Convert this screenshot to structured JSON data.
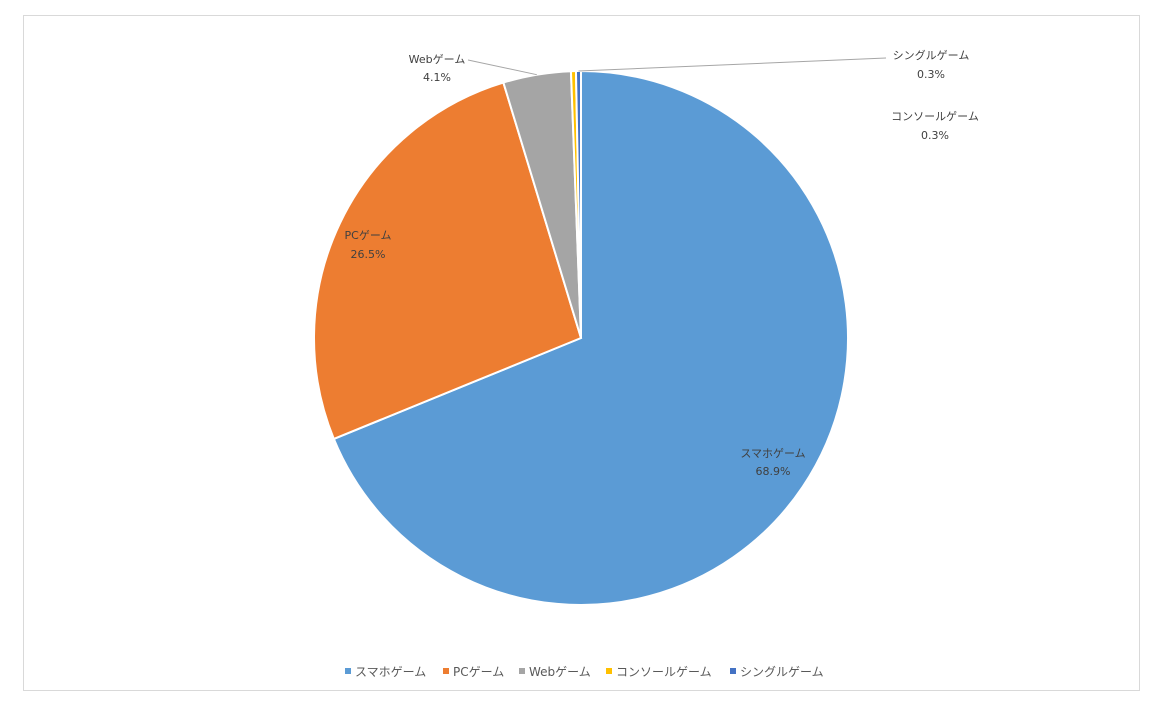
{
  "chart_data": {
    "type": "pie",
    "title": "",
    "categories": [
      "スマホゲーム",
      "PCゲーム",
      "Webゲーム",
      "コンソールゲーム",
      "シングルゲーム"
    ],
    "values": [
      68.9,
      26.5,
      4.1,
      0.3,
      0.3
    ],
    "value_labels": [
      "68.9%",
      "26.5%",
      "4.1%",
      "0.3%",
      "0.3%"
    ],
    "colors": [
      "#5b9bd5",
      "#ed7d31",
      "#a5a5a5",
      "#ffc000",
      "#4472c4"
    ],
    "legend": {
      "position": "bottom",
      "entries": [
        "スマホゲーム",
        "PCゲーム",
        "Webゲーム",
        "コンソールゲーム",
        "シングルゲーム"
      ]
    },
    "data_labels": [
      {
        "name": "スマホゲーム",
        "value": "68.9%"
      },
      {
        "name": "PCゲーム",
        "value": "26.5%"
      },
      {
        "name": "Webゲーム",
        "value": "4.1%"
      },
      {
        "name": "コンソールゲーム",
        "value": "0.3%"
      },
      {
        "name": "シングルゲーム",
        "value": "0.3%"
      }
    ]
  }
}
